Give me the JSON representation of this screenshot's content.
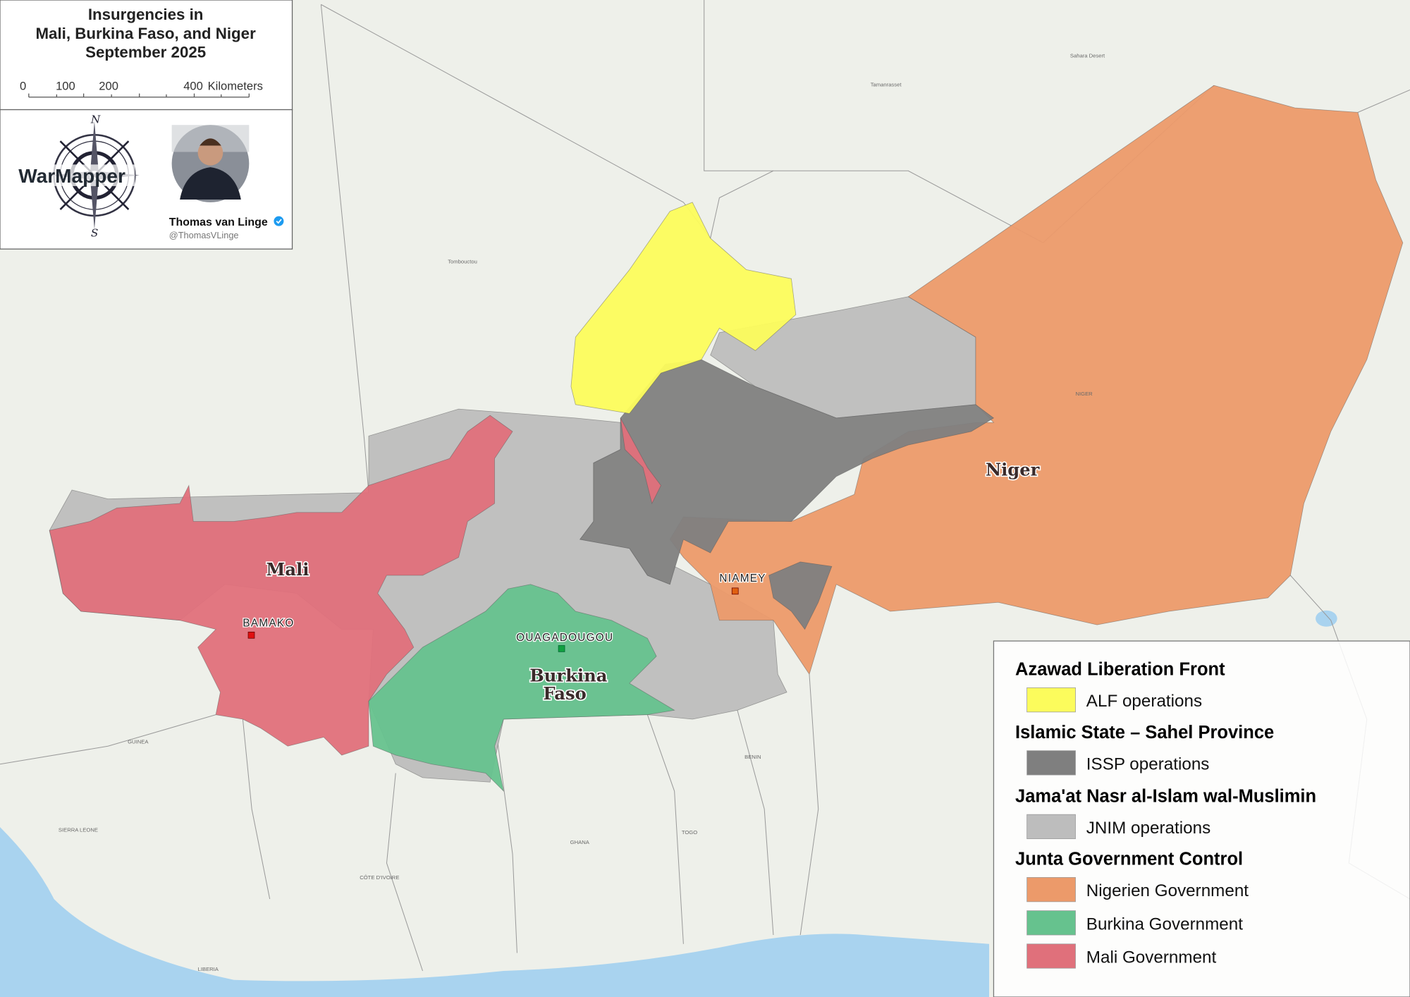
{
  "title": {
    "line1": "Insurgencies in",
    "line2": "Mali, Burkina Faso, and Niger",
    "line3": "September 2025"
  },
  "scale_bar": {
    "ticks": [
      "0",
      "100",
      "200",
      "400"
    ],
    "unit": "Kilometers"
  },
  "logo": {
    "text": "WarMapper",
    "compass_n": "N",
    "compass_s": "S"
  },
  "author": {
    "name": "Thomas van Linge",
    "handle": "@ThomasVLinge",
    "verified": true
  },
  "countries": {
    "mali": "Mali",
    "burkina": "Burkina",
    "faso": "Faso",
    "niger": "Niger"
  },
  "capitals": {
    "bamako": "BAMAKO",
    "niamey": "NIAMEY",
    "ouagadougou": "OUAGADOUGOU"
  },
  "basemap_labels": {
    "sahara": "Sahara Desert",
    "tombouctou": "Tombouctou",
    "tamanrasset": "Tamanrasset",
    "niger_region": "NIGER",
    "guinea": "GUINEA",
    "ghana": "GHANA",
    "benin": "BENIN",
    "togo": "TOGO",
    "cote_divoire": "CÔTE D'IVOIRE",
    "sierra_leone": "SIERRA LEONE",
    "liberia": "LIBERIA"
  },
  "legend": {
    "groups": [
      {
        "header": "Azawad Liberation Front",
        "items": [
          {
            "label": "ALF operations",
            "color": "#fcfc5c"
          }
        ]
      },
      {
        "header": "Islamic State – Sahel Province",
        "items": [
          {
            "label": "ISSP operations",
            "color": "#7f7f7f"
          }
        ]
      },
      {
        "header": "Jama'at Nasr al-Islam wal-Muslimin",
        "items": [
          {
            "label": "JNIM operations",
            "color": "#bdbdbd"
          }
        ]
      },
      {
        "header": "Junta Government Control",
        "items": [
          {
            "label": "Nigerien Government",
            "color": "#ec9a6a"
          },
          {
            "label": "Burkina Government",
            "color": "#66c28e"
          },
          {
            "label": "Mali Government",
            "color": "#e0707b"
          }
        ]
      }
    ]
  },
  "colors": {
    "alf": "#fcfc5c",
    "issp": "#7f7f7f",
    "jnim": "#bdbdbd",
    "niger_gov": "#ec9a6a",
    "burkina_gov": "#66c28e",
    "mali_gov": "#e0707b",
    "ocean": "#a9d3ef"
  }
}
